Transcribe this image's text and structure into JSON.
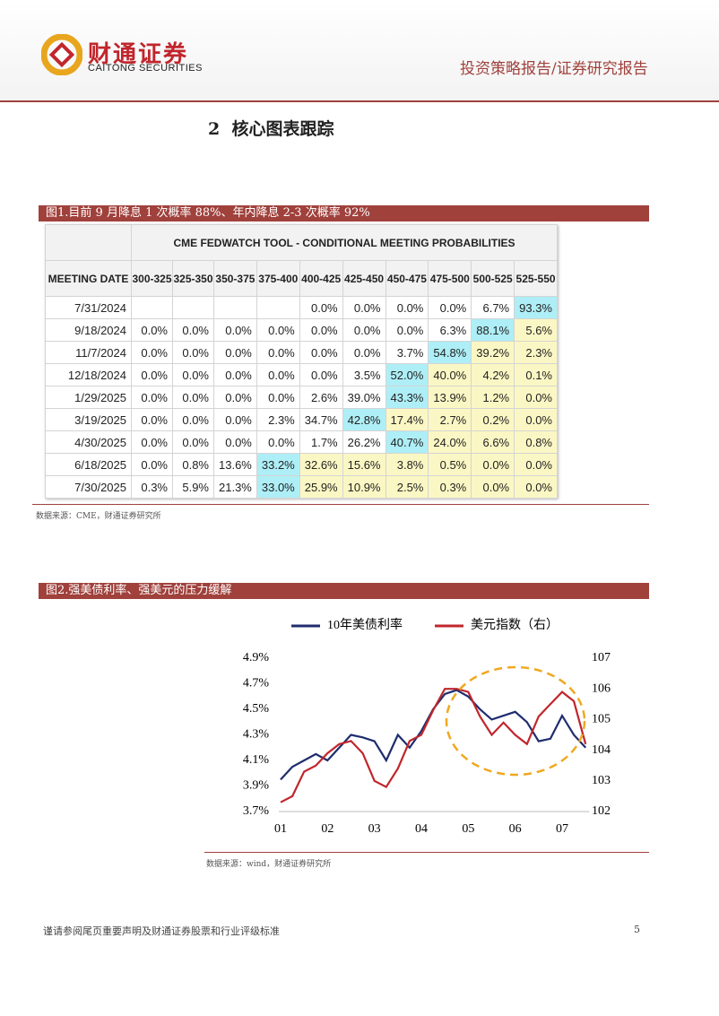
{
  "header": {
    "logo_cn": "财通证券",
    "logo_en": "CAITONG SECURITIES",
    "report_type": "投资策略报告/证券研究报告"
  },
  "section_title": "2  核心图表跟踪",
  "figure1": {
    "caption": "图1.目前 9 月降息 1 次概率 88%、年内降息 2-3 次概率 92%",
    "table": {
      "title": "CME FEDWATCH TOOL - CONDITIONAL MEETING PROBABILITIES",
      "columns": [
        "MEETING DATE",
        "300-325",
        "325-350",
        "350-375",
        "375-400",
        "400-425",
        "425-450",
        "450-475",
        "475-500",
        "500-525",
        "525-550"
      ],
      "rows": [
        [
          "7/31/2024",
          null,
          null,
          null,
          null,
          "0.0%",
          "0.0%",
          "0.0%",
          "0.0%",
          "6.7%",
          "93.3%"
        ],
        [
          "9/18/2024",
          "0.0%",
          "0.0%",
          "0.0%",
          "0.0%",
          "0.0%",
          "0.0%",
          "0.0%",
          "6.3%",
          "88.1%",
          "5.6%"
        ],
        [
          "11/7/2024",
          "0.0%",
          "0.0%",
          "0.0%",
          "0.0%",
          "0.0%",
          "0.0%",
          "3.7%",
          "54.8%",
          "39.2%",
          "2.3%"
        ],
        [
          "12/18/2024",
          "0.0%",
          "0.0%",
          "0.0%",
          "0.0%",
          "0.0%",
          "3.5%",
          "52.0%",
          "40.0%",
          "4.2%",
          "0.1%"
        ],
        [
          "1/29/2025",
          "0.0%",
          "0.0%",
          "0.0%",
          "0.0%",
          "2.6%",
          "39.0%",
          "43.3%",
          "13.9%",
          "1.2%",
          "0.0%"
        ],
        [
          "3/19/2025",
          "0.0%",
          "0.0%",
          "0.0%",
          "2.3%",
          "34.7%",
          "42.8%",
          "17.4%",
          "2.7%",
          "0.2%",
          "0.0%"
        ],
        [
          "4/30/2025",
          "0.0%",
          "0.0%",
          "0.0%",
          "0.0%",
          "1.7%",
          "26.2%",
          "40.7%",
          "24.0%",
          "6.6%",
          "0.8%"
        ],
        [
          "6/18/2025",
          "0.0%",
          "0.8%",
          "13.6%",
          "33.2%",
          "32.6%",
          "15.6%",
          "3.8%",
          "0.5%",
          "0.0%",
          "0.0%"
        ],
        [
          "7/30/2025",
          "0.3%",
          "5.9%",
          "21.3%",
          "33.0%",
          "25.9%",
          "10.9%",
          "2.5%",
          "0.3%",
          "0.0%",
          "0.0%"
        ]
      ]
    },
    "source": "数据来源：CME，财通证券研究所"
  },
  "figure2": {
    "caption": "图2.强美债利率、强美元的压力缓解",
    "chart_data": {
      "type": "line",
      "categories": [
        "01",
        null,
        null,
        null,
        "02",
        null,
        null,
        null,
        "03",
        null,
        null,
        null,
        "04",
        null,
        null,
        null,
        "05",
        null,
        null,
        null,
        "06",
        null,
        null,
        null,
        "07",
        null,
        null
      ],
      "series": [
        {
          "name": "10年美债利率",
          "color": "#1f2d6e",
          "values": [
            3.95,
            4.05,
            4.1,
            4.15,
            4.1,
            4.2,
            4.3,
            4.28,
            4.25,
            4.1,
            4.3,
            4.2,
            4.33,
            4.5,
            4.62,
            4.65,
            4.6,
            4.5,
            4.42,
            4.45,
            4.48,
            4.4,
            4.25,
            4.27,
            4.45,
            4.3,
            4.2
          ]
        },
        {
          "name": "美元指数（右）",
          "color": "#c0262c",
          "axis": "y2",
          "values": [
            102.3,
            102.5,
            103.3,
            103.5,
            103.9,
            104.2,
            104.3,
            103.9,
            103.0,
            102.8,
            103.4,
            104.3,
            104.5,
            105.3,
            106.0,
            106.0,
            105.9,
            105.1,
            104.5,
            104.9,
            104.5,
            104.2,
            105.1,
            105.5,
            105.9,
            105.6,
            104.2
          ]
        }
      ],
      "ylim": [
        3.7,
        4.9
      ],
      "yticks": [
        {
          "value": 3.7,
          "label": "3.7%"
        },
        {
          "value": 3.9,
          "label": "3.9%"
        },
        {
          "value": 4.1,
          "label": "4.1%"
        },
        {
          "value": 4.3,
          "label": "4.3%"
        },
        {
          "value": 4.5,
          "label": "4.5%"
        },
        {
          "value": 4.7,
          "label": "4.7%"
        },
        {
          "value": 4.9,
          "label": "4.9%"
        }
      ],
      "y2lim": [
        102,
        107
      ],
      "y2ticks": [
        102,
        103,
        104,
        105,
        106,
        107
      ],
      "grid": false
    },
    "source": "数据来源：wind，财通证券研究所"
  },
  "footer": {
    "disclaimer": "谨请参阅尾页重要声明及财通证券股票和行业评级标准",
    "page": "5"
  }
}
